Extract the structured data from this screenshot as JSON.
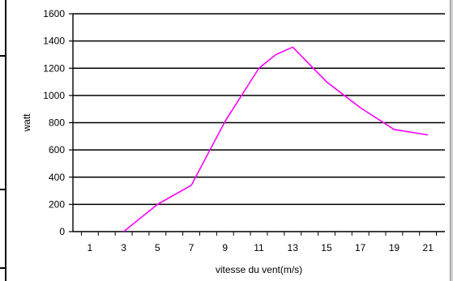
{
  "chart_data": {
    "type": "line",
    "xlabel": "vitesse du vent(m/s)",
    "ylabel": "watt",
    "x_ticks": [
      "1",
      "3",
      "5",
      "7",
      "9",
      "11",
      "13",
      "15",
      "17",
      "19",
      "21"
    ],
    "y_ticks": [
      "0",
      "200",
      "400",
      "600",
      "800",
      "1000",
      "1200",
      "1400",
      "1600"
    ],
    "ylim": [
      0,
      1600
    ],
    "xlim": [
      0,
      22
    ],
    "grid": true,
    "legend": "none",
    "series": [
      {
        "color": "#ff00ff",
        "x": [
          3,
          5,
          7,
          9,
          11,
          12,
          13,
          15,
          17,
          19,
          21
        ],
        "y": [
          0,
          200,
          340,
          810,
          1200,
          1300,
          1355,
          1100,
          910,
          750,
          710
        ]
      }
    ]
  }
}
